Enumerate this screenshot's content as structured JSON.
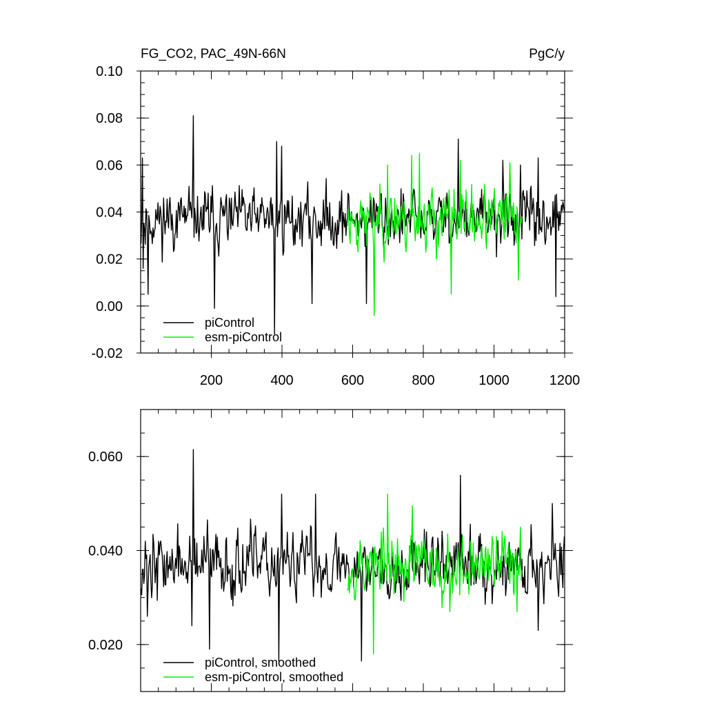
{
  "chart_data": [
    {
      "type": "line",
      "title": "FG_CO2, PAC_49N-66N",
      "units": "PgC/y",
      "xlim": [
        0,
        1200
      ],
      "ylim": [
        -0.02,
        0.1
      ],
      "x_ticks": [
        200,
        400,
        600,
        800,
        1000,
        1200
      ],
      "x_tick_labels": [
        "200",
        "400",
        "600",
        "800",
        "1000",
        "1200"
      ],
      "y_ticks": [
        -0.02,
        0.0,
        0.02,
        0.04,
        0.06,
        0.08,
        0.1
      ],
      "y_tick_labels": [
        "-0.02",
        "0.00",
        "0.02",
        "0.04",
        "0.06",
        "0.08",
        "0.10"
      ],
      "legend_position": "bottom-left",
      "series": [
        {
          "name": "piControl",
          "color": "#000000",
          "x_start": 1,
          "x_end": 1200,
          "mean": 0.037,
          "spread": 0.009,
          "seed": 11,
          "peaks": [
            [
              5,
              0.063
            ],
            [
              8,
              0.016
            ],
            [
              22,
              0.005
            ],
            [
              150,
              0.081
            ],
            [
              210,
              -0.001
            ],
            [
              380,
              -0.012
            ],
            [
              385,
              0.07
            ],
            [
              400,
              0.068
            ],
            [
              485,
              0.001
            ],
            [
              640,
              0.001
            ],
            [
              900,
              0.071
            ],
            [
              1025,
              0.062
            ],
            [
              1075,
              0.06
            ],
            [
              1125,
              0.063
            ],
            [
              1175,
              0.004
            ]
          ]
        },
        {
          "name": "esm-piControl",
          "color": "#00ee00",
          "x_start": 585,
          "x_end": 1080,
          "mean": 0.037,
          "spread": 0.009,
          "seed": 23,
          "peaks": [
            [
              662,
              -0.004
            ],
            [
              700,
              0.06
            ],
            [
              768,
              0.064
            ],
            [
              790,
              0.065
            ],
            [
              880,
              0.005
            ],
            [
              905,
              0.062
            ],
            [
              1045,
              0.061
            ],
            [
              1070,
              0.011
            ]
          ]
        }
      ]
    },
    {
      "type": "line",
      "xlim": [
        0,
        1200
      ],
      "ylim": [
        0.01,
        0.07
      ],
      "y_ticks": [
        0.02,
        0.04,
        0.06
      ],
      "y_tick_labels": [
        "0.020",
        "0.040",
        "0.060"
      ],
      "legend_position": "bottom-left",
      "series": [
        {
          "name": "piControl, smoothed",
          "color": "#000000",
          "x_start": 1,
          "x_end": 1200,
          "mean": 0.037,
          "spread": 0.005,
          "seed": 37,
          "peaks": [
            [
              5,
              0.036
            ],
            [
              10,
              0.033
            ],
            [
              14,
              0.042
            ],
            [
              20,
              0.026
            ],
            [
              150,
              0.0615
            ],
            [
              145,
              0.024
            ],
            [
              195,
              0.019
            ],
            [
              392,
              0.0165
            ],
            [
              400,
              0.052
            ],
            [
              495,
              0.052
            ],
            [
              625,
              0.0165
            ],
            [
              905,
              0.056
            ],
            [
              1125,
              0.023
            ],
            [
              1165,
              0.05
            ],
            [
              1200,
              0.043
            ]
          ]
        },
        {
          "name": "esm-piControl, smoothed",
          "color": "#00ee00",
          "x_start": 585,
          "x_end": 1080,
          "mean": 0.037,
          "spread": 0.005,
          "seed": 53,
          "peaks": [
            [
              660,
              0.018
            ],
            [
              700,
              0.052
            ],
            [
              770,
              0.0495
            ],
            [
              875,
              0.027
            ],
            [
              1075,
              0.045
            ],
            [
              1065,
              0.027
            ]
          ]
        }
      ]
    }
  ]
}
